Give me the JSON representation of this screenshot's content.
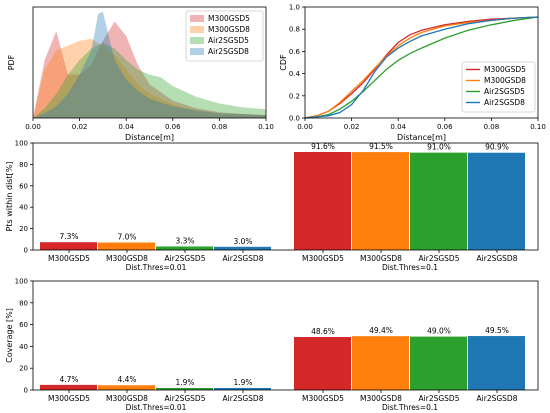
{
  "colors": {
    "M300GSD5": "#d62728",
    "M300GSD8": "#ff7f0e",
    "Air2SGSD5": "#2ca02c",
    "Air2SGSD8": "#1f77b4"
  },
  "chart_data": [
    {
      "type": "area",
      "title": "",
      "xlabel": "Distance[m]",
      "ylabel": "PDF",
      "xlim": [
        0,
        0.1
      ],
      "x_ticks": [
        "0.00",
        "0.02",
        "0.04",
        "0.06",
        "0.08",
        "0.10"
      ],
      "y_ticks": [],
      "legend": [
        "M300GSD5",
        "M300GSD8",
        "Air2SGSD5",
        "Air2SGSD8"
      ],
      "legend_position": "top-right",
      "grid": false,
      "series": [
        {
          "name": "M300GSD5",
          "x": [
            0,
            0.005,
            0.01,
            0.015,
            0.02,
            0.025,
            0.03,
            0.035,
            0.04,
            0.045,
            0.05,
            0.06,
            0.07,
            0.08,
            0.09,
            0.1
          ],
          "y": [
            0,
            0.6,
            0.9,
            0.45,
            0.45,
            0.55,
            0.8,
            1.0,
            0.85,
            0.55,
            0.35,
            0.18,
            0.1,
            0.06,
            0.04,
            0.03
          ]
        },
        {
          "name": "M300GSD8",
          "x": [
            0,
            0.005,
            0.01,
            0.015,
            0.02,
            0.025,
            0.03,
            0.035,
            0.04,
            0.045,
            0.05,
            0.06,
            0.07,
            0.08,
            0.09,
            0.1
          ],
          "y": [
            0,
            0.5,
            0.7,
            0.75,
            0.8,
            0.82,
            0.75,
            0.65,
            0.5,
            0.35,
            0.25,
            0.14,
            0.08,
            0.05,
            0.04,
            0.03
          ]
        },
        {
          "name": "Air2SGSD5",
          "x": [
            0,
            0.005,
            0.01,
            0.015,
            0.02,
            0.025,
            0.03,
            0.035,
            0.04,
            0.045,
            0.05,
            0.055,
            0.06,
            0.07,
            0.08,
            0.09,
            0.1
          ],
          "y": [
            0,
            0.1,
            0.25,
            0.45,
            0.6,
            0.72,
            0.78,
            0.72,
            0.6,
            0.5,
            0.45,
            0.42,
            0.33,
            0.22,
            0.15,
            0.11,
            0.09
          ]
        },
        {
          "name": "Air2SGSD8",
          "x": [
            0,
            0.005,
            0.01,
            0.015,
            0.02,
            0.025,
            0.028,
            0.03,
            0.032,
            0.035,
            0.04,
            0.045,
            0.05,
            0.06,
            0.07,
            0.08,
            0.09,
            0.1
          ],
          "y": [
            0,
            0.05,
            0.12,
            0.25,
            0.45,
            0.7,
            1.08,
            1.1,
            0.9,
            0.6,
            0.4,
            0.28,
            0.2,
            0.12,
            0.08,
            0.05,
            0.04,
            0.03
          ]
        }
      ]
    },
    {
      "type": "line",
      "title": "",
      "xlabel": "Distance[m]",
      "ylabel": "CDF",
      "xlim": [
        0,
        0.1
      ],
      "ylim": [
        0,
        1.0
      ],
      "x_ticks": [
        "0.00",
        "0.02",
        "0.04",
        "0.06",
        "0.08",
        "0.10"
      ],
      "y_ticks": [
        "0.0",
        "0.2",
        "0.4",
        "0.6",
        "0.8",
        "1.0"
      ],
      "legend": [
        "M300GSD5",
        "M300GSD8",
        "Air2SGSD5",
        "Air2SGSD8"
      ],
      "legend_position": "lower-right",
      "grid": false,
      "series": [
        {
          "name": "M300GSD5",
          "x": [
            0,
            0.005,
            0.01,
            0.015,
            0.02,
            0.025,
            0.03,
            0.035,
            0.04,
            0.045,
            0.05,
            0.06,
            0.07,
            0.08,
            0.09,
            0.1
          ],
          "y": [
            0,
            0.02,
            0.06,
            0.13,
            0.22,
            0.32,
            0.44,
            0.57,
            0.68,
            0.75,
            0.79,
            0.84,
            0.87,
            0.89,
            0.9,
            0.91
          ]
        },
        {
          "name": "M300GSD8",
          "x": [
            0,
            0.005,
            0.01,
            0.015,
            0.02,
            0.025,
            0.03,
            0.035,
            0.04,
            0.045,
            0.05,
            0.06,
            0.07,
            0.08,
            0.09,
            0.1
          ],
          "y": [
            0,
            0.02,
            0.06,
            0.14,
            0.24,
            0.34,
            0.45,
            0.56,
            0.65,
            0.72,
            0.77,
            0.83,
            0.86,
            0.88,
            0.9,
            0.91
          ]
        },
        {
          "name": "Air2SGSD5",
          "x": [
            0,
            0.005,
            0.01,
            0.015,
            0.02,
            0.025,
            0.03,
            0.035,
            0.04,
            0.045,
            0.05,
            0.06,
            0.07,
            0.08,
            0.09,
            0.1
          ],
          "y": [
            0,
            0.01,
            0.03,
            0.08,
            0.15,
            0.24,
            0.34,
            0.44,
            0.52,
            0.58,
            0.63,
            0.72,
            0.79,
            0.84,
            0.88,
            0.91
          ]
        },
        {
          "name": "Air2SGSD8",
          "x": [
            0,
            0.005,
            0.01,
            0.015,
            0.02,
            0.025,
            0.03,
            0.035,
            0.04,
            0.045,
            0.05,
            0.06,
            0.07,
            0.08,
            0.09,
            0.1
          ],
          "y": [
            0,
            0.01,
            0.02,
            0.05,
            0.12,
            0.25,
            0.42,
            0.55,
            0.63,
            0.69,
            0.74,
            0.8,
            0.85,
            0.88,
            0.9,
            0.91
          ]
        }
      ]
    },
    {
      "type": "bar",
      "title": "",
      "ylabel": "Pts within dist[%]",
      "ylim": [
        0,
        100
      ],
      "y_ticks": [
        "0",
        "20",
        "40",
        "60",
        "80",
        "100"
      ],
      "grid": false,
      "groups": [
        {
          "label": "Dist.Thres=0.01",
          "categories": [
            "M300GSD5",
            "M300GSD8",
            "Air2SGSD5",
            "Air2SGSD8"
          ],
          "values": [
            7.3,
            7.0,
            3.3,
            3.0
          ],
          "labels": [
            "7.3%",
            "7.0%",
            "3.3%",
            "3.0%"
          ]
        },
        {
          "label": "Dist.Thres=0.1",
          "categories": [
            "M300GSD5",
            "M300GSD8",
            "Air2SGSD5",
            "Air2SGSD8"
          ],
          "values": [
            91.6,
            91.5,
            91.0,
            90.9
          ],
          "labels": [
            "91.6%",
            "91.5%",
            "91.0%",
            "90.9%"
          ]
        }
      ]
    },
    {
      "type": "bar",
      "title": "",
      "ylabel": "Coverage [%]",
      "ylim": [
        0,
        100
      ],
      "y_ticks": [
        "0",
        "20",
        "40",
        "60",
        "80",
        "100"
      ],
      "grid": false,
      "groups": [
        {
          "label": "Dist.Thres=0.01",
          "categories": [
            "M300GSD5",
            "M300GSD8",
            "Air2SGSD5",
            "Air2SGSD8"
          ],
          "values": [
            4.7,
            4.4,
            1.9,
            1.9
          ],
          "labels": [
            "4.7%",
            "4.4%",
            "1.9%",
            "1.9%"
          ]
        },
        {
          "label": "Dist.Thres=0.1",
          "categories": [
            "M300GSD5",
            "M300GSD8",
            "Air2SGSD5",
            "Air2SGSD8"
          ],
          "values": [
            48.6,
            49.4,
            49.0,
            49.5
          ],
          "labels": [
            "48.6%",
            "49.4%",
            "49.0%",
            "49.5%"
          ]
        }
      ]
    }
  ]
}
